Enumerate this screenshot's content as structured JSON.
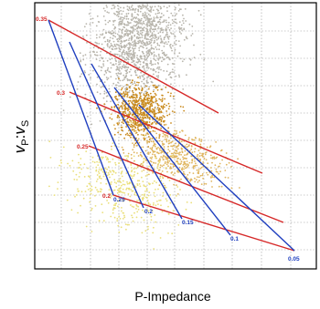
{
  "chart_data": {
    "type": "scatter",
    "title": "",
    "xlabel": "P-Impedance",
    "ylabel_parts": {
      "main": "v",
      "sub_p": "P",
      "sep": ":",
      "main2": "v",
      "sub_s": "S"
    },
    "grid": true,
    "axes": {
      "x_ticks_labeled": false,
      "y_ticks_labeled": false
    },
    "template": {
      "porosity_lines": [
        {
          "label": "0.35",
          "color": "#d62828"
        },
        {
          "label": "0.3",
          "color": "#d62828"
        },
        {
          "label": "0.25",
          "color": "#d62828"
        },
        {
          "label": "0.2",
          "color": "#d62828"
        }
      ],
      "shale_lines": [
        {
          "label": "0.25",
          "color": "#1f3fbf"
        },
        {
          "label": "0.2",
          "color": "#1f3fbf"
        },
        {
          "label": "0.15",
          "color": "#1f3fbf"
        },
        {
          "label": "0.1",
          "color": "#1f3fbf"
        },
        {
          "label": "0.05",
          "color": "#1f3fbf"
        }
      ]
    },
    "point_clouds": [
      {
        "name": "gray",
        "color": "#b8b5ac"
      },
      {
        "name": "orange",
        "color": "#c98a1c"
      },
      {
        "name": "light-orange",
        "color": "#e0b660"
      },
      {
        "name": "yellow",
        "color": "#eadf7a"
      }
    ]
  }
}
